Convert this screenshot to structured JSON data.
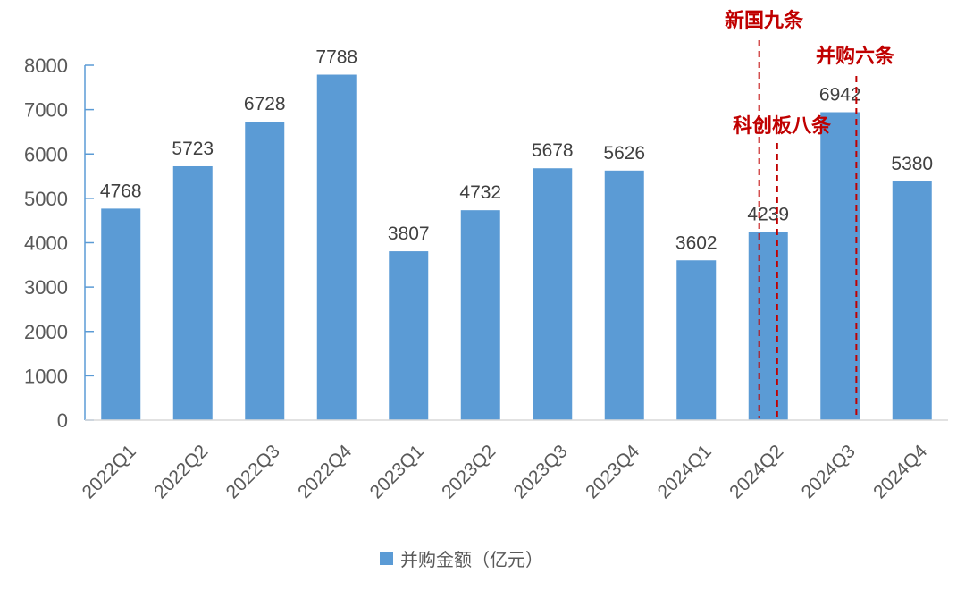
{
  "chart_data": {
    "type": "bar",
    "title": "",
    "xlabel": "",
    "ylabel": "",
    "ylim": [
      0,
      8000
    ],
    "yticks": [
      0,
      1000,
      2000,
      3000,
      4000,
      5000,
      6000,
      7000,
      8000
    ],
    "grid": false,
    "legend_position": "bottom",
    "categories": [
      "2022Q1",
      "2022Q2",
      "2022Q3",
      "2022Q4",
      "2023Q1",
      "2023Q2",
      "2023Q3",
      "2023Q4",
      "2024Q1",
      "2024Q2",
      "2024Q3",
      "2024Q4"
    ],
    "series": [
      {
        "name": "并购金额（亿元）",
        "color": "#5b9bd5",
        "values": [
          4768,
          5723,
          6728,
          7788,
          3807,
          4732,
          5678,
          5626,
          3602,
          4239,
          6942,
          5380
        ]
      }
    ],
    "annotations": [
      {
        "text": "新国九条",
        "category": "2024Q2",
        "offset": -0.25,
        "color": "#c00000",
        "style": "dashed-vertical-line"
      },
      {
        "text": "科创板八条",
        "category": "2024Q2",
        "offset": 0.25,
        "color": "#c00000",
        "style": "dashed-vertical-line"
      },
      {
        "text": "并购六条",
        "category": "2024Q3",
        "offset": 0.5,
        "color": "#c00000",
        "style": "dashed-vertical-line"
      }
    ]
  },
  "legend": {
    "label": "并购金额（亿元）",
    "color": "#5b9bd5"
  }
}
